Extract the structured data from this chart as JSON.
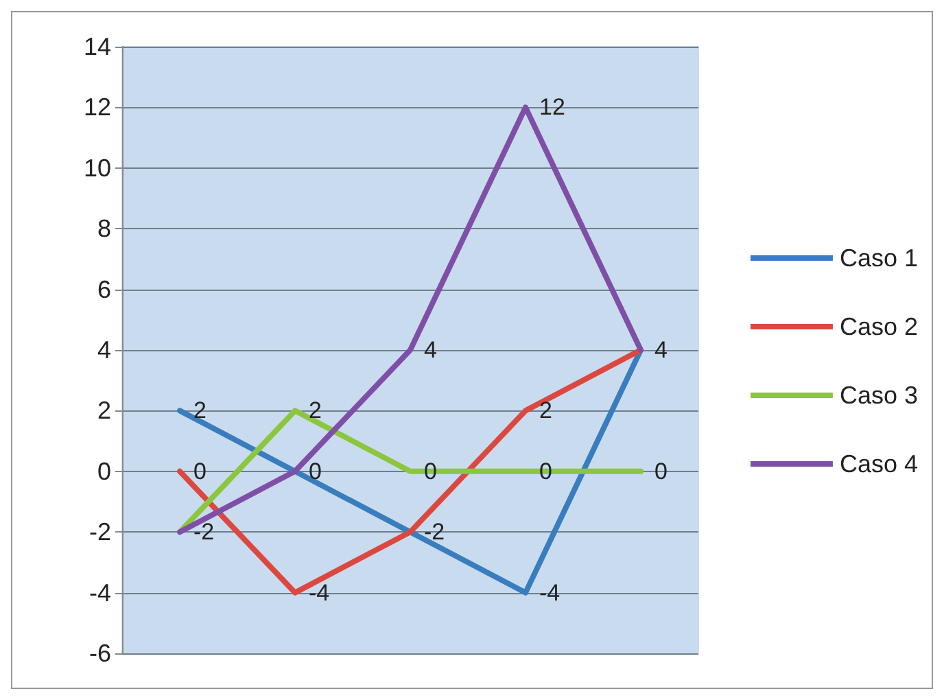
{
  "chart_data": {
    "type": "line",
    "categories": [
      null,
      null,
      null,
      null,
      null
    ],
    "series": [
      {
        "name": "Caso 1",
        "color": "#3a7dbf",
        "values": [
          2,
          0,
          -2,
          -4,
          4
        ],
        "value_labels": [
          "2",
          "0",
          "-2",
          "-4",
          "4"
        ]
      },
      {
        "name": "Caso 2",
        "color": "#dc4840",
        "values": [
          0,
          -4,
          -2,
          2,
          4
        ],
        "value_labels": [
          "0",
          "-4",
          null,
          "2",
          null
        ]
      },
      {
        "name": "Caso 3",
        "color": "#8cc63e",
        "values": [
          -2,
          2,
          0,
          0,
          0
        ],
        "value_labels": [
          "-2",
          "2",
          "0",
          "0",
          "0"
        ]
      },
      {
        "name": "Caso 4",
        "color": "#7f4fa8",
        "values": [
          -2,
          0,
          4,
          12,
          4
        ],
        "value_labels": [
          null,
          null,
          "4",
          "12",
          null
        ]
      }
    ],
    "ylim": [
      -6,
      14
    ],
    "yticks": [
      -6,
      -4,
      -2,
      0,
      2,
      4,
      6,
      8,
      10,
      12,
      14
    ],
    "grid": "y",
    "legend": "right",
    "marker": "none",
    "line_style": "solid"
  }
}
